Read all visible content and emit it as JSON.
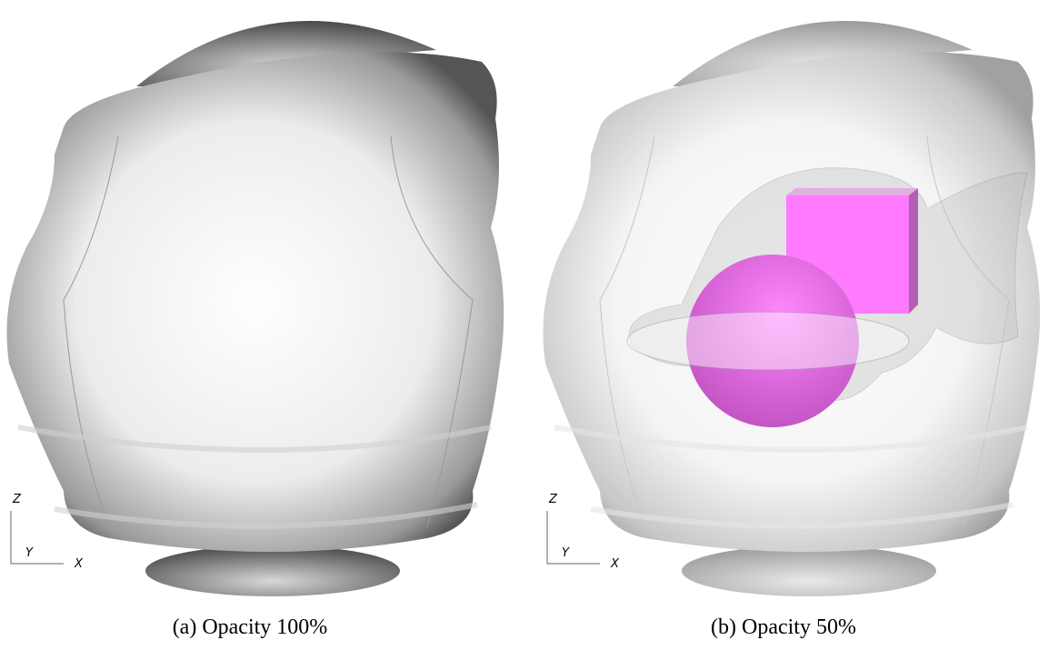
{
  "panels": [
    {
      "caption": "(a) Opacity 100%",
      "axes": {
        "z": "Z",
        "y": "Y",
        "x": "X"
      }
    },
    {
      "caption": "(b) Opacity 50%",
      "axes": {
        "z": "Z",
        "y": "Y",
        "x": "X"
      }
    }
  ]
}
